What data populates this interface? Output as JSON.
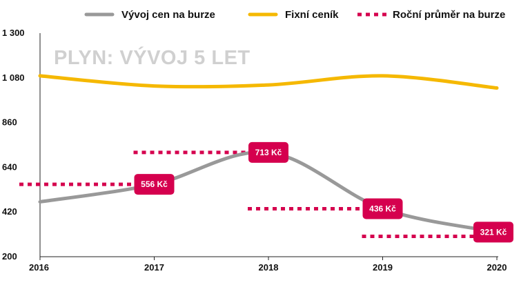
{
  "chart_data": {
    "type": "line",
    "title": "PLYN: VÝVOJ 5 LET",
    "x": [
      "2016",
      "2017",
      "2018",
      "2019",
      "2020"
    ],
    "ylim": [
      200,
      1300
    ],
    "y_ticks": [
      "1 300",
      "1 080",
      "860",
      "640",
      "420",
      "200"
    ],
    "y_tick_values": [
      1300,
      1080,
      860,
      640,
      420,
      200
    ],
    "grid": false,
    "legend_position": "top",
    "series": [
      {
        "name": "Vývoj cen na burze",
        "style": "solid",
        "color": "#999999",
        "values": [
          470,
          556,
          713,
          436,
          321
        ]
      },
      {
        "name": "Fixní ceník",
        "style": "solid",
        "color": "#f5b800",
        "values": [
          1090,
          1040,
          1045,
          1090,
          1030
        ]
      },
      {
        "name": "Roční průměr na burze",
        "style": "dotted",
        "color": "#d5004e",
        "segments": [
          {
            "x_start": 2016,
            "x_end": 2017,
            "value": 556
          },
          {
            "x_start": 2017,
            "x_end": 2018,
            "value": 713
          },
          {
            "x_start": 2018,
            "x_end": 2019,
            "value": 436
          },
          {
            "x_start": 2019,
            "x_end": 2020,
            "value": 300
          }
        ]
      }
    ],
    "annotations": [
      {
        "x": 2017,
        "value": 556,
        "label": "556 Kč"
      },
      {
        "x": 2018,
        "value": 713,
        "label": "713 Kč"
      },
      {
        "x": 2019,
        "value": 436,
        "label": "436 Kč"
      },
      {
        "x": 2020,
        "value": 321,
        "label": "321 Kč"
      }
    ]
  }
}
